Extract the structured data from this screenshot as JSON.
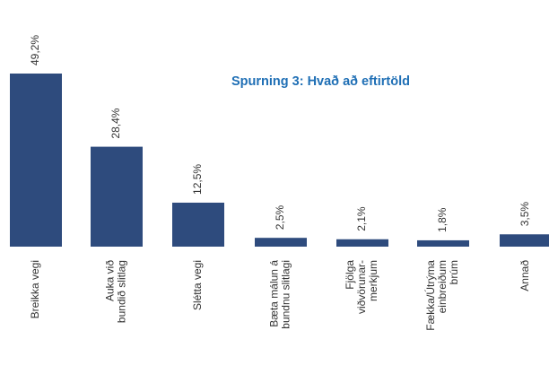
{
  "chart_data": {
    "type": "bar",
    "title": "Spurning 3: Hvað að eftirtöld",
    "categories": [
      "Breikka vegi",
      "Auka við\nbundið slitlag",
      "Slétta vegi",
      "Bæta málun á\nbundnu slitlagi",
      "Fjölga\nviðvörunar-\nmerkjum",
      "Fækka/Útrýma\neinbreiðum\nbrúm",
      "Annað"
    ],
    "values": [
      49.2,
      28.4,
      12.5,
      2.5,
      2.1,
      1.8,
      3.5
    ],
    "value_labels": [
      "49,2%",
      "28,4%",
      "12,5%",
      "2,5%",
      "2,1%",
      "1,8%",
      "3,5%"
    ],
    "color": "#2e4b7d"
  }
}
